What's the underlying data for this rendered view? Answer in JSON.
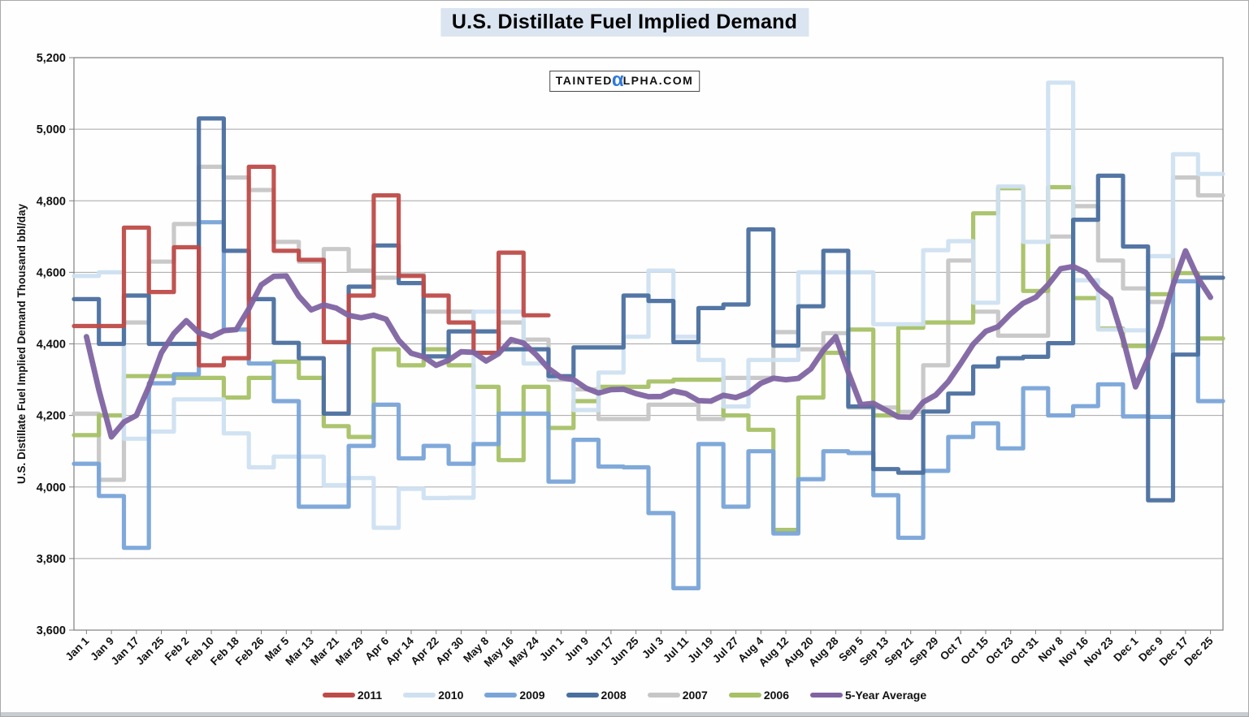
{
  "chart_data": {
    "type": "line",
    "title": "U.S. Distillate Fuel Implied Demand",
    "ylabel": "U.S. Distillate Fuel Implied Demand Thousand bbl/day",
    "xlabel": "",
    "ylim": [
      3600,
      5200
    ],
    "ytick_interval": 200,
    "y_tick_labels": [
      "3,600",
      "3,800",
      "4,000",
      "4,200",
      "4,400",
      "4,600",
      "4,800",
      "5,000",
      "5,200"
    ],
    "grid": true,
    "legend_position": "bottom",
    "x_labels": [
      "Jan 1",
      "Jan 9",
      "Jan 17",
      "Jan 25",
      "Feb 2",
      "Feb 10",
      "Feb 18",
      "Feb 26",
      "Mar 5",
      "Mar 13",
      "Mar 21",
      "Mar 29",
      "Apr 6",
      "Apr 14",
      "Apr 22",
      "Apr 30",
      "May 8",
      "May 16",
      "May 24",
      "Jun 1",
      "Jun 9",
      "Jun 17",
      "Jun 25",
      "Jul 3",
      "Jul 11",
      "Jul 19",
      "Jul 27",
      "Aug 4",
      "Aug 12",
      "Aug 20",
      "Aug 28",
      "Sep 5",
      "Sep 13",
      "Sep 21",
      "Sep 29",
      "Oct 7",
      "Oct 15",
      "Oct 23",
      "Oct 31",
      "Nov 8",
      "Nov 16",
      "Nov 23",
      "Dec 1",
      "Dec 9",
      "Dec 17",
      "Dec 25"
    ],
    "series": [
      {
        "name": "2011",
        "color": "#BE4B48",
        "step": true,
        "values": [
          4450,
          4450,
          4725,
          4545,
          4670,
          4340,
          4360,
          4895,
          4660,
          4635,
          4405,
          4535,
          4815,
          4590,
          4535,
          4460,
          4375,
          4655,
          4480,
          null,
          null,
          null,
          null,
          null,
          null,
          null,
          null,
          null,
          null,
          null,
          null,
          null,
          null,
          null,
          null,
          null,
          null,
          null,
          null,
          null,
          null,
          null,
          null,
          null,
          null,
          null
        ]
      },
      {
        "name": "2010",
        "color": "#CIDE_PLACEHOLDER",
        "step": true,
        "values": []
      },
      {
        "name": "2009",
        "color": "#79A4D8",
        "step": true,
        "values": []
      },
      {
        "name": "2008",
        "color": "#4A6F9F",
        "step": true,
        "values": []
      },
      {
        "name": "2007",
        "color": "#C6C6C6",
        "step": true,
        "values": []
      },
      {
        "name": "2006",
        "color": "#A7C166",
        "step": true,
        "values": []
      },
      {
        "name": "5-Year Average",
        "color": "#8064A2",
        "step": false,
        "values": []
      }
    ],
    "series_data": {
      "s2010": [
        4590,
        4600,
        4135,
        4155,
        4245,
        4245,
        4150,
        4055,
        4085,
        4085,
        4005,
        4025,
        3886,
        3995,
        3969,
        3970,
        4490,
        4490,
        4345,
        4305,
        4215,
        4320,
        4420,
        4605,
        4420,
        4355,
        4225,
        4355,
        4355,
        4600,
        4600,
        4600,
        4455,
        4455,
        4662,
        4687,
        4515,
        4840,
        4685,
        5130,
        4578,
        4440,
        4438,
        4645,
        4930,
        4875
      ],
      "s2009": [
        4065,
        3975,
        3830,
        4290,
        4315,
        4740,
        4440,
        4345,
        4240,
        3945,
        3945,
        4115,
        4230,
        4080,
        4115,
        4065,
        4120,
        4205,
        4205,
        4015,
        4132,
        4057,
        4055,
        3927,
        3717,
        4120,
        3945,
        4100,
        3870,
        4022,
        4100,
        4095,
        3977,
        3858,
        4045,
        4140,
        4178,
        4108,
        4276,
        4200,
        4226,
        4287,
        4197,
        4196,
        4575,
        4240
      ],
      "s2008": [
        4525,
        4400,
        4535,
        4400,
        4400,
        5030,
        4660,
        4525,
        4403,
        4360,
        4205,
        4560,
        4675,
        4570,
        4365,
        4435,
        4435,
        4385,
        4385,
        4310,
        4390,
        4390,
        4535,
        4520,
        4405,
        4500,
        4510,
        4720,
        4395,
        4505,
        4660,
        4225,
        4050,
        4040,
        4211,
        4261,
        4337,
        4360,
        4364,
        4402,
        4747,
        4870,
        4672,
        3963,
        4370,
        4585
      ],
      "s2007": [
        4205,
        4020,
        4460,
        4630,
        4735,
        4895,
        4865,
        4830,
        4685,
        4630,
        4665,
        4605,
        4585,
        4595,
        4490,
        4490,
        4375,
        4460,
        4412,
        4300,
        4273,
        4190,
        4190,
        4230,
        4230,
        4190,
        4305,
        4305,
        4433,
        4385,
        4430,
        4222,
        4222,
        4210,
        4340,
        4633,
        4490,
        4423,
        4423,
        4700,
        4785,
        4633,
        4555,
        4517,
        4865,
        4815
      ],
      "s2006": [
        4145,
        4200,
        4310,
        4310,
        4305,
        4305,
        4250,
        4305,
        4350,
        4305,
        4170,
        4140,
        4385,
        4340,
        4385,
        4340,
        4280,
        4075,
        4280,
        4165,
        4240,
        4280,
        4280,
        4295,
        4300,
        4300,
        4200,
        4160,
        3880,
        4250,
        4375,
        4440,
        4200,
        4445,
        4460,
        4460,
        4765,
        4835,
        4548,
        4838,
        4528,
        4443,
        4394,
        4539,
        4598,
        4415
      ],
      "savg": [
        4420,
        4140,
        4200,
        4375,
        4465,
        4420,
        4440,
        4565,
        4590,
        4495,
        4500,
        4473,
        4469,
        4374,
        4340,
        4378,
        4352,
        4412,
        4370,
        4306,
        4276,
        4272,
        4261,
        4253,
        4261,
        4240,
        4250,
        4290,
        4300,
        4330,
        4420,
        4230,
        4215,
        4195,
        4257,
        4345,
        4435,
        4484,
        4530,
        4610,
        4600,
        4526,
        4280,
        4450,
        4660,
        4530
      ]
    },
    "colors": {
      "2010_fix": "#CFE0F1",
      "gridline": "#A6A6A6",
      "axis": "#808080",
      "title_bg": "#DBE5F1",
      "watermark_alpha": "#2F79D8"
    }
  },
  "watermark": {
    "part1": "TAINTED",
    "alpha": "α",
    "part2": "LPHA.COM"
  }
}
